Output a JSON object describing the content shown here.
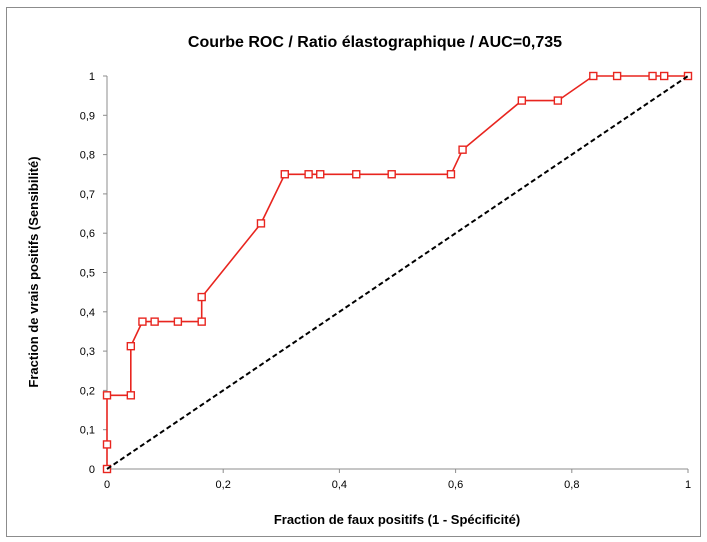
{
  "chart_data": {
    "type": "line",
    "title": "Courbe ROC / Ratio élastographique / AUC=0,735",
    "xlabel": "Fraction de faux positifs (1 - Spécificité)",
    "ylabel": "Fraction de vrais positifs (Sensibilité)",
    "xlim": [
      0,
      1
    ],
    "ylim": [
      0,
      1
    ],
    "x_ticks": [
      0,
      0.2,
      0.4,
      0.6,
      0.8,
      1
    ],
    "x_tick_labels": [
      "0",
      "0,2",
      "0,4",
      "0,6",
      "0,8",
      "1"
    ],
    "y_ticks": [
      0,
      0.1,
      0.2,
      0.3,
      0.4,
      0.5,
      0.6,
      0.7,
      0.8,
      0.9,
      1
    ],
    "y_tick_labels": [
      "0",
      "0,1",
      "0,2",
      "0,3",
      "0,4",
      "0,5",
      "0,6",
      "0,7",
      "0,8",
      "0,9",
      "1"
    ],
    "grid": false,
    "legend": "none",
    "series": [
      {
        "color": "#e8251f",
        "marker": "hollow-square",
        "x": [
          0,
          0,
          0,
          0.041,
          0.041,
          0.061,
          0.082,
          0.122,
          0.163,
          0.163,
          0.265,
          0.306,
          0.347,
          0.367,
          0.429,
          0.49,
          0.592,
          0.612,
          0.714,
          0.776,
          0.837,
          0.878,
          0.939,
          0.959,
          1
        ],
        "y": [
          0,
          0.0625,
          0.1875,
          0.1875,
          0.3125,
          0.375,
          0.375,
          0.375,
          0.375,
          0.4375,
          0.625,
          0.75,
          0.75,
          0.75,
          0.75,
          0.75,
          0.75,
          0.8125,
          0.9375,
          0.9375,
          1,
          1,
          1,
          1,
          1
        ]
      },
      {
        "color": "#000000",
        "style": "dashed",
        "x": [
          0,
          1
        ],
        "y": [
          0,
          1
        ]
      }
    ]
  }
}
